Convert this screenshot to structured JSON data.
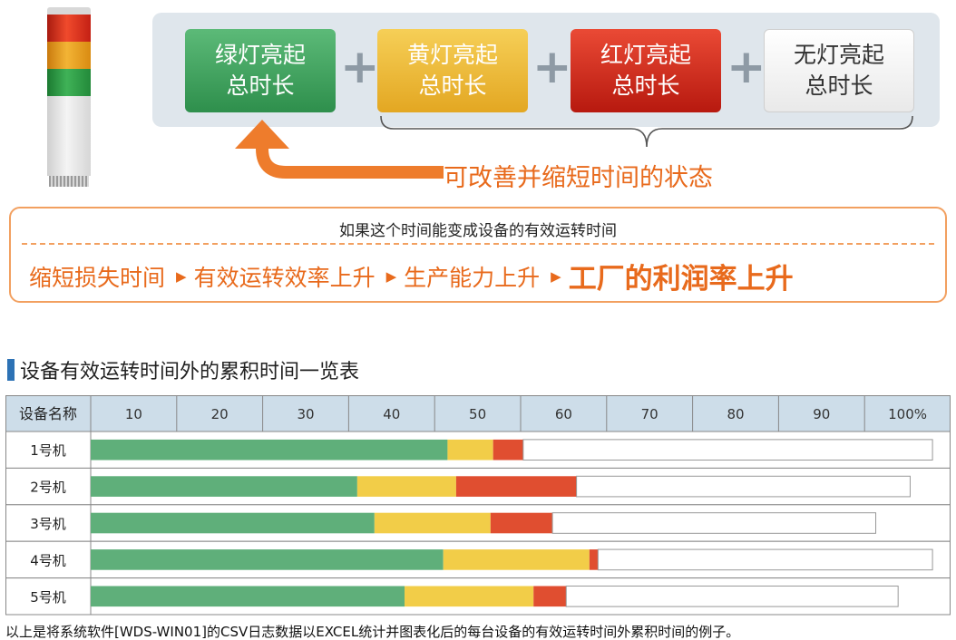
{
  "lamps": {
    "green": "绿灯亮起\n总时长",
    "yellow": "黄灯亮起\n总时长",
    "red": "红灯亮起\n总时长",
    "none": "无灯亮起\n总时长",
    "plus": "+"
  },
  "improve_label": "可改善并缩短时间的状态",
  "banner": {
    "top": "如果这个时间能变成设备的有效运转时间",
    "steps": [
      "缩短损失时间",
      "有效运转效率上升",
      "生产能力上升"
    ],
    "final": "工厂的利润率上升",
    "separator": "▶"
  },
  "section_title": "设备有效运转时间外的累积时间一览表",
  "colors": {
    "green": "#5faf7a",
    "yellow": "#f2cd48",
    "red": "#e04e30",
    "header_bg": "#cddde9",
    "border": "#888888"
  },
  "chart_data": {
    "type": "bar",
    "orientation": "horizontal",
    "stacked": true,
    "header_label": "设备名称",
    "tick_labels": [
      "10",
      "20",
      "30",
      "40",
      "50",
      "60",
      "70",
      "80",
      "90",
      "100%"
    ],
    "xlim": [
      0,
      100
    ],
    "categories": [
      "1号机",
      "2号机",
      "3号机",
      "4号机",
      "5号机"
    ],
    "series": [
      {
        "color": "green",
        "values": [
          41.5,
          31,
          33,
          41,
          36.5
        ]
      },
      {
        "color": "yellow",
        "values": [
          5.3,
          11.5,
          13.5,
          17,
          15
        ]
      },
      {
        "color": "red",
        "values": [
          3.5,
          14,
          7.2,
          1,
          3.8
        ]
      },
      {
        "color": "white",
        "values": [
          47.6,
          38.8,
          37.6,
          38.9,
          38.6
        ]
      }
    ]
  },
  "footnote": "以上是将系统软件[WDS-WIN01]的CSV日志数据以EXCEL统计并图表化后的每台设备的有效运转时间外累积时间的例子。"
}
